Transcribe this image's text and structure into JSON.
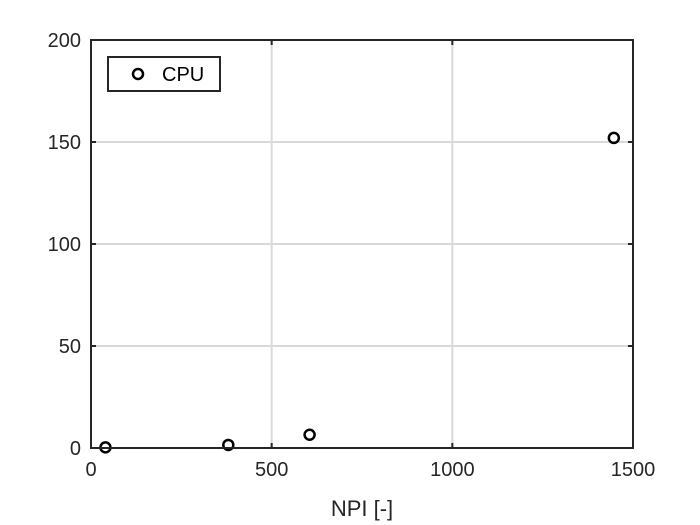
{
  "chart_data": {
    "type": "scatter",
    "title": "",
    "xlabel": "NPI [-]",
    "ylabel": "",
    "xlim": [
      0,
      1500
    ],
    "ylim": [
      0,
      200
    ],
    "xticks": [
      0,
      500,
      1000,
      1500
    ],
    "yticks": [
      0,
      50,
      100,
      150,
      200
    ],
    "xtick_labels": [
      "0",
      "500",
      "1000",
      "1500"
    ],
    "ytick_labels": [
      "0",
      "50",
      "100",
      "150",
      "200"
    ],
    "grid": true,
    "legend": {
      "placement": "top-left"
    },
    "series": [
      {
        "name": "CPU",
        "marker": "circle-open",
        "color": "#000000",
        "x": [
          40,
          380,
          605,
          1447
        ],
        "y": [
          0.3,
          1.5,
          6.5,
          152
        ]
      }
    ]
  }
}
